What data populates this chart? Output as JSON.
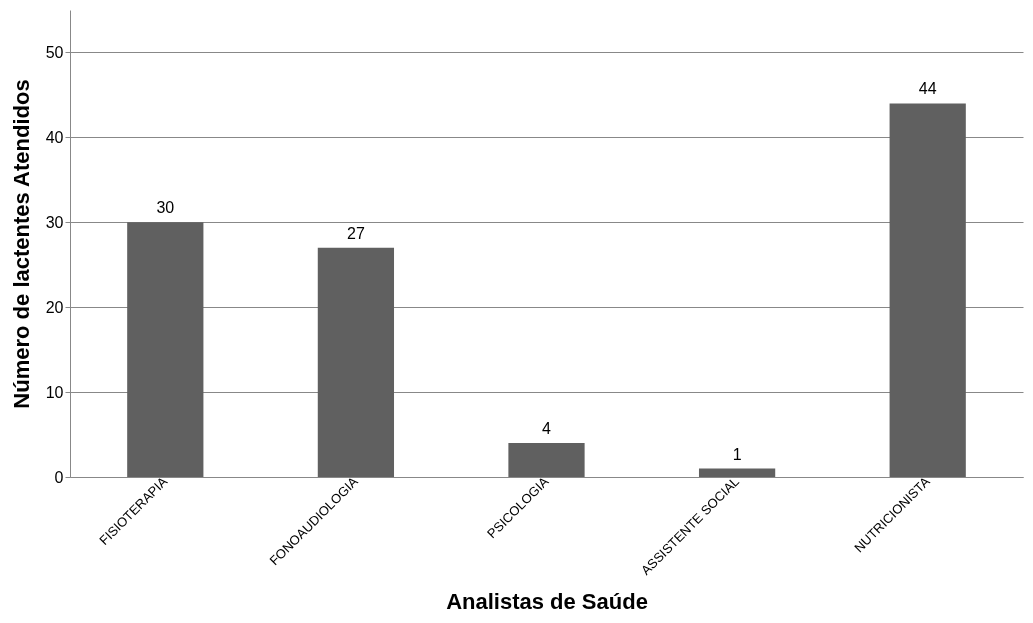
{
  "chart_data": {
    "type": "bar",
    "xlabel": "Analistas  de Saúde",
    "ylabel": "Número de lactentes Atendidos",
    "categories": [
      "FISIOTERAPIA",
      "FONOAUDIOLOGIA",
      "PSICOLOGIA",
      "ASSISTENTE SOCIAL",
      "NUTRICIONISTA"
    ],
    "values": [
      30,
      27,
      4,
      1,
      44
    ],
    "color": "#606060",
    "ylim": [
      0,
      55
    ],
    "yticks": [
      0,
      10,
      20,
      30,
      40,
      50
    ],
    "grid": "y",
    "data_labels": true
  }
}
